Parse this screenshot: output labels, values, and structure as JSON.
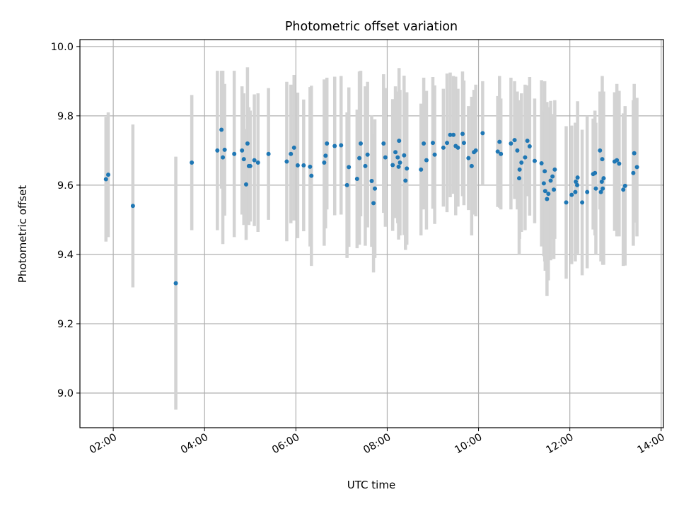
{
  "chart_data": {
    "type": "scatter",
    "title": "Photometric offset variation",
    "xlabel": "UTC time",
    "ylabel": "Photometric offset",
    "x_format": "HH:MM (hours since 00:00 UTC)",
    "xlim": [
      1.27,
      14.05
    ],
    "ylim": [
      8.9,
      10.02
    ],
    "x_ticks": [
      2,
      4,
      6,
      8,
      10,
      12,
      14
    ],
    "x_tick_labels": [
      "02:00",
      "04:00",
      "06:00",
      "08:00",
      "10:00",
      "12:00",
      "14:00"
    ],
    "y_ticks": [
      9.0,
      9.2,
      9.4,
      9.6,
      9.8,
      10.0
    ],
    "y_tick_labels": [
      "9.0",
      "9.2",
      "9.4",
      "9.6",
      "9.8",
      "10.0"
    ],
    "grid": true,
    "point_color": "#1f77b4",
    "errorbar_color": "#d3d3d3",
    "points": [
      [
        1.84,
        9.617,
        0.18
      ],
      [
        1.89,
        9.63,
        0.18
      ],
      [
        2.43,
        9.54,
        0.235
      ],
      [
        3.37,
        9.317,
        0.365
      ],
      [
        3.72,
        9.665,
        0.195
      ],
      [
        4.28,
        9.7,
        0.23
      ],
      [
        4.37,
        9.76,
        0.17
      ],
      [
        4.4,
        9.68,
        0.25
      ],
      [
        4.44,
        9.702,
        0.19
      ],
      [
        4.65,
        9.69,
        0.24
      ],
      [
        4.82,
        9.7,
        0.185
      ],
      [
        4.86,
        9.675,
        0.19
      ],
      [
        4.91,
        9.602,
        0.16
      ],
      [
        4.94,
        9.72,
        0.22
      ],
      [
        4.97,
        9.655,
        0.17
      ],
      [
        5.0,
        9.655,
        0.16
      ],
      [
        5.09,
        9.672,
        0.19
      ],
      [
        5.17,
        9.665,
        0.2
      ],
      [
        5.4,
        9.69,
        0.19
      ],
      [
        5.8,
        9.668,
        0.23
      ],
      [
        5.89,
        9.69,
        0.2
      ],
      [
        5.96,
        9.708,
        0.21
      ],
      [
        6.04,
        9.657,
        0.21
      ],
      [
        6.17,
        9.657,
        0.19
      ],
      [
        6.31,
        9.653,
        0.23
      ],
      [
        6.34,
        9.627,
        0.26
      ],
      [
        6.62,
        9.665,
        0.24
      ],
      [
        6.65,
        9.685,
        0.21
      ],
      [
        6.68,
        9.72,
        0.19
      ],
      [
        6.85,
        9.713,
        0.2
      ],
      [
        6.99,
        9.715,
        0.2
      ],
      [
        7.12,
        9.6,
        0.21
      ],
      [
        7.16,
        9.652,
        0.23
      ],
      [
        7.34,
        9.618,
        0.2
      ],
      [
        7.39,
        9.678,
        0.25
      ],
      [
        7.42,
        9.72,
        0.21
      ],
      [
        7.52,
        9.655,
        0.23
      ],
      [
        7.57,
        9.688,
        0.21
      ],
      [
        7.66,
        9.612,
        0.19
      ],
      [
        7.7,
        9.548,
        0.2
      ],
      [
        7.73,
        9.59,
        0.2
      ],
      [
        7.92,
        9.72,
        0.2
      ],
      [
        7.96,
        9.68,
        0.2
      ],
      [
        8.12,
        9.658,
        0.19
      ],
      [
        8.18,
        9.695,
        0.19
      ],
      [
        8.23,
        9.68,
        0.19
      ],
      [
        8.25,
        9.653,
        0.21
      ],
      [
        8.26,
        9.728,
        0.21
      ],
      [
        8.28,
        9.665,
        0.21
      ],
      [
        8.37,
        9.686,
        0.23
      ],
      [
        8.4,
        9.613,
        0.2
      ],
      [
        8.43,
        9.648,
        0.22
      ],
      [
        8.74,
        9.645,
        0.19
      ],
      [
        8.8,
        9.72,
        0.19
      ],
      [
        8.86,
        9.672,
        0.2
      ],
      [
        9.0,
        9.722,
        0.19
      ],
      [
        9.04,
        9.688,
        0.2
      ],
      [
        9.23,
        9.708,
        0.17
      ],
      [
        9.31,
        9.722,
        0.2
      ],
      [
        9.38,
        9.745,
        0.18
      ],
      [
        9.45,
        9.745,
        0.17
      ],
      [
        9.5,
        9.713,
        0.2
      ],
      [
        9.55,
        9.708,
        0.17
      ],
      [
        9.65,
        9.748,
        0.18
      ],
      [
        9.68,
        9.722,
        0.18
      ],
      [
        9.78,
        9.678,
        0.15
      ],
      [
        9.85,
        9.655,
        0.2
      ],
      [
        9.9,
        9.695,
        0.18
      ],
      [
        9.94,
        9.7,
        0.19
      ],
      [
        10.09,
        9.75,
        0.15
      ],
      [
        10.42,
        9.697,
        0.16
      ],
      [
        10.46,
        9.725,
        0.19
      ],
      [
        10.49,
        9.69,
        0.16
      ],
      [
        10.71,
        9.72,
        0.19
      ],
      [
        10.79,
        9.73,
        0.17
      ],
      [
        10.85,
        9.7,
        0.17
      ],
      [
        10.89,
        9.62,
        0.22
      ],
      [
        10.9,
        9.645,
        0.2
      ],
      [
        10.94,
        9.665,
        0.2
      ],
      [
        11.02,
        9.68,
        0.21
      ],
      [
        11.07,
        9.728,
        0.16
      ],
      [
        11.12,
        9.712,
        0.2
      ],
      [
        11.23,
        9.67,
        0.18
      ],
      [
        11.38,
        9.663,
        0.24
      ],
      [
        11.43,
        9.605,
        0.21
      ],
      [
        11.45,
        9.64,
        0.26
      ],
      [
        11.46,
        9.583,
        0.23
      ],
      [
        11.5,
        9.56,
        0.28
      ],
      [
        11.53,
        9.575,
        0.25
      ],
      [
        11.58,
        9.613,
        0.23
      ],
      [
        11.62,
        9.625,
        0.18
      ],
      [
        11.65,
        9.587,
        0.2
      ],
      [
        11.67,
        9.645,
        0.2
      ],
      [
        11.92,
        9.55,
        0.22
      ],
      [
        12.04,
        9.572,
        0.2
      ],
      [
        12.12,
        9.58,
        0.2
      ],
      [
        12.13,
        9.61,
        0.17
      ],
      [
        12.16,
        9.6,
        0.18
      ],
      [
        12.17,
        9.622,
        0.22
      ],
      [
        12.27,
        9.55,
        0.21
      ],
      [
        12.38,
        9.58,
        0.22
      ],
      [
        12.51,
        9.632,
        0.16
      ],
      [
        12.55,
        9.635,
        0.18
      ],
      [
        12.57,
        9.59,
        0.19
      ],
      [
        12.66,
        9.7,
        0.17
      ],
      [
        12.68,
        9.58,
        0.2
      ],
      [
        12.7,
        9.61,
        0.22
      ],
      [
        12.71,
        9.675,
        0.24
      ],
      [
        12.72,
        9.59,
        0.22
      ],
      [
        12.74,
        9.62,
        0.25
      ],
      [
        12.98,
        9.668,
        0.2
      ],
      [
        13.03,
        9.672,
        0.22
      ],
      [
        13.08,
        9.662,
        0.21
      ],
      [
        13.17,
        9.587,
        0.22
      ],
      [
        13.21,
        9.598,
        0.23
      ],
      [
        13.39,
        9.635,
        0.21
      ],
      [
        13.41,
        9.692,
        0.2
      ],
      [
        13.47,
        9.652,
        0.2
      ]
    ]
  }
}
